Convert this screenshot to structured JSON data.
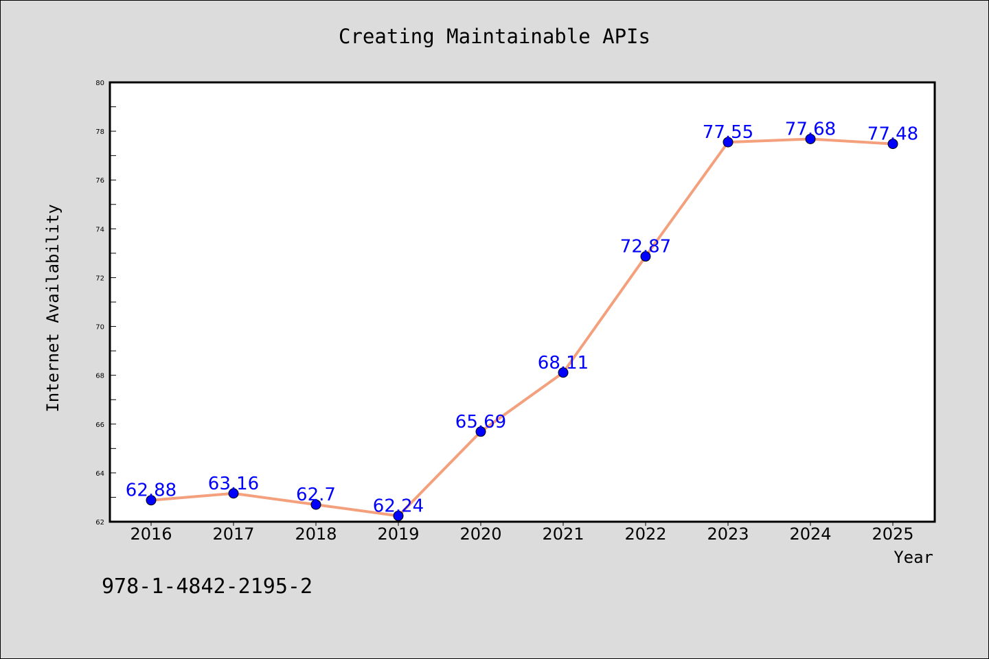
{
  "page": {
    "background": "#dcdcdc",
    "footer_text": "978-1-4842-2195-2"
  },
  "chart_data": {
    "type": "line",
    "title": "Creating Maintainable APIs",
    "xlabel": "Year",
    "ylabel": "Internet Availability",
    "x": [
      "2016",
      "2017",
      "2018",
      "2019",
      "2020",
      "2021",
      "2022",
      "2023",
      "2024",
      "2025"
    ],
    "series": [
      {
        "values": [
          62.88,
          63.16,
          62.7,
          62.24,
          65.69,
          68.11,
          72.87,
          77.55,
          77.68,
          77.48
        ],
        "line_color": "#f4a07c",
        "marker_color": "#0000ff"
      }
    ],
    "data_labels": [
      "62.88",
      "63.16",
      "62.7",
      "62.24",
      "65.69",
      "68.11",
      "72.87",
      "77.55",
      "77.68",
      "77.48"
    ],
    "ylim": [
      62,
      80
    ],
    "yticks": [
      "62",
      "64",
      "66",
      "68",
      "70",
      "72",
      "74",
      "76",
      "78",
      "80"
    ],
    "grid": false,
    "legend": "none"
  }
}
